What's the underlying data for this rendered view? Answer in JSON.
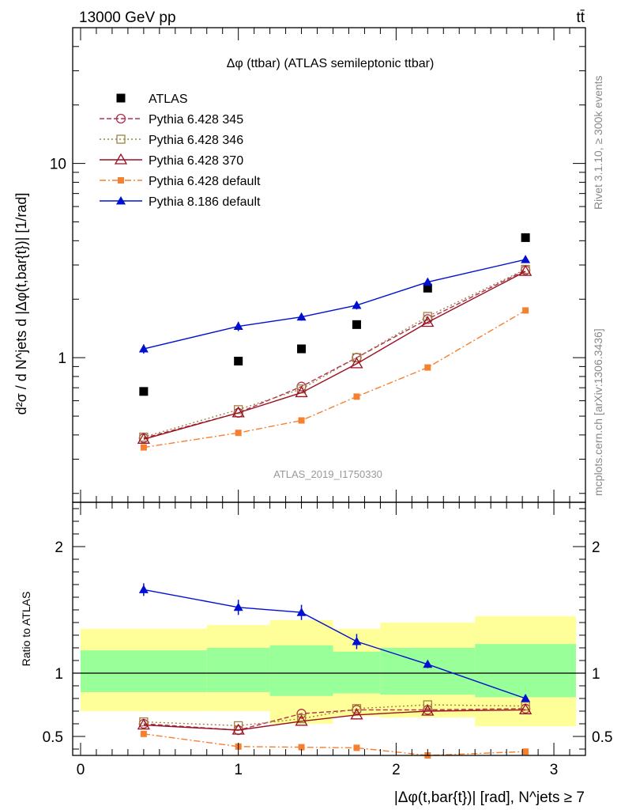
{
  "header": {
    "left": "13000 GeV pp",
    "right": "tt̄"
  },
  "side_labels": {
    "rivet": "Rivet 3.1.10, ≥ 300k events",
    "mcplots": "mcplots.cern.ch [arXiv:1306.3436]"
  },
  "watermark": "ATLAS_2019_I1750330",
  "colors": {
    "atlas": "#000000",
    "p345": "#b03050",
    "p346": "#a08040",
    "p370": "#9a1020",
    "p6def": "#f58030",
    "p8def": "#0010d0",
    "band_inner": "#99ff99",
    "band_outer": "#ffff99"
  },
  "chart_data": [
    {
      "type": "scatter",
      "title": "Δφ (ttbar) (ATLAS semileptonic ttbar)",
      "ylabel": "d²σ / d N^jets d |Δφ(t,bar{t})| [1/rad]",
      "yscale": "log",
      "ylim": [
        0.18,
        50
      ],
      "xlim": [
        -0.05,
        3.2
      ],
      "y_ticks": [
        1,
        10
      ],
      "y_tick_labels": [
        "1",
        "10"
      ],
      "legend": "top-left",
      "x": [
        0.4,
        1.0,
        1.4,
        1.75,
        2.2,
        2.82
      ],
      "series": [
        {
          "name": "ATLAS",
          "key": "atlas",
          "marker": "square-filled",
          "line": "none",
          "values": [
            0.67,
            0.96,
            1.11,
            1.48,
            2.28,
            4.15
          ]
        },
        {
          "name": "Pythia 6.428 345",
          "key": "p345",
          "marker": "circle-open",
          "line": "dashed",
          "values": [
            0.385,
            0.52,
            0.71,
            1.0,
            1.58,
            2.82
          ]
        },
        {
          "name": "Pythia 6.428 346",
          "key": "p346",
          "marker": "square-open",
          "line": "dotted",
          "values": [
            0.39,
            0.54,
            0.69,
            1.0,
            1.63,
            2.85
          ]
        },
        {
          "name": "Pythia 6.428 370",
          "key": "p370",
          "marker": "triangle-open",
          "line": "solid",
          "values": [
            0.38,
            0.52,
            0.66,
            0.93,
            1.52,
            2.78
          ]
        },
        {
          "name": "Pythia 6.428 default",
          "key": "p6def",
          "marker": "square-filled-small",
          "line": "dashdot",
          "values": [
            0.345,
            0.41,
            0.475,
            0.63,
            0.89,
            1.75
          ]
        },
        {
          "name": "Pythia 8.186 default",
          "key": "p8def",
          "marker": "triangle-filled",
          "line": "solid",
          "values": [
            1.11,
            1.45,
            1.62,
            1.86,
            2.45,
            3.2
          ],
          "errors": [
            0.06,
            0.08,
            0.07,
            0.09,
            0.08,
            0.07
          ]
        }
      ]
    },
    {
      "type": "scatter",
      "ylabel": "Ratio to ATLAS",
      "xlabel": "|Δφ(t,bar{t})| [rad], N^jets ≥ 7",
      "ylim": [
        0.35,
        2.35
      ],
      "xlim": [
        -0.05,
        3.2
      ],
      "y_ticks": [
        0.5,
        1,
        2
      ],
      "y_tick_labels": [
        "0.5",
        "1",
        "2"
      ],
      "x_ticks": [
        0,
        1,
        2,
        3
      ],
      "x_tick_labels": [
        "0",
        "1",
        "2",
        "3"
      ],
      "bins": [
        [
          0.0,
          0.8
        ],
        [
          0.8,
          1.2
        ],
        [
          1.2,
          1.6
        ],
        [
          1.6,
          1.9
        ],
        [
          1.9,
          2.5
        ],
        [
          2.5,
          3.14
        ]
      ],
      "band_inner": [
        [
          0.85,
          1.18
        ],
        [
          0.85,
          1.2
        ],
        [
          0.82,
          1.22
        ],
        [
          0.84,
          1.17
        ],
        [
          0.83,
          1.2
        ],
        [
          0.81,
          1.23
        ]
      ],
      "band_outer": [
        [
          0.7,
          1.35
        ],
        [
          0.7,
          1.38
        ],
        [
          0.6,
          1.42
        ],
        [
          0.66,
          1.35
        ],
        [
          0.65,
          1.4
        ],
        [
          0.58,
          1.45
        ]
      ],
      "x": [
        0.4,
        1.0,
        1.4,
        1.75,
        2.2,
        2.82
      ],
      "series": [
        {
          "name": "Pythia 6.428 345",
          "key": "p345",
          "marker": "circle-open",
          "line": "dashed",
          "values": [
            0.6,
            0.55,
            0.68,
            0.71,
            0.71,
            0.72
          ]
        },
        {
          "name": "Pythia 6.428 346",
          "key": "p346",
          "marker": "square-open",
          "line": "dotted",
          "values": [
            0.615,
            0.585,
            0.64,
            0.72,
            0.75,
            0.74
          ]
        },
        {
          "name": "Pythia 6.428 370",
          "key": "p370",
          "marker": "triangle-open",
          "line": "solid",
          "values": [
            0.59,
            0.55,
            0.62,
            0.67,
            0.7,
            0.71
          ]
        },
        {
          "name": "Pythia 6.428 default",
          "key": "p6def",
          "marker": "square-filled-small",
          "line": "dashdot",
          "values": [
            0.52,
            0.42,
            0.415,
            0.41,
            0.35,
            0.38
          ]
        },
        {
          "name": "Pythia 8.186 default",
          "key": "p8def",
          "marker": "triangle-filled",
          "line": "solid",
          "values": [
            1.66,
            1.52,
            1.48,
            1.25,
            1.07,
            0.8
          ],
          "errors": [
            0.05,
            0.06,
            0.06,
            0.06,
            0.03,
            0.02
          ]
        }
      ]
    }
  ]
}
